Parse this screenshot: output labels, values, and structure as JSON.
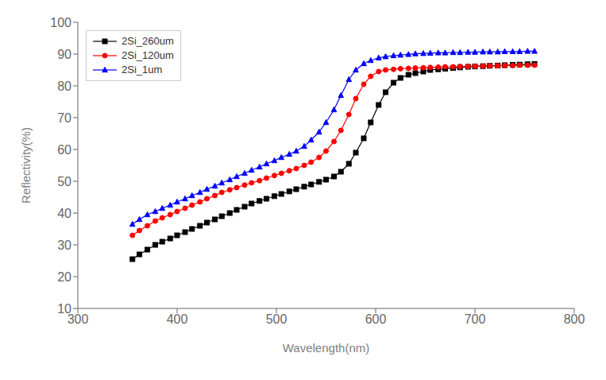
{
  "chart_data": {
    "type": "line",
    "xlabel": "Wavelength(nm)",
    "ylabel": "Reflectivity(%)",
    "xlim": [
      300,
      800
    ],
    "ylim": [
      10,
      100
    ],
    "xticks": [
      300,
      400,
      500,
      600,
      700,
      800
    ],
    "yticks": [
      10,
      20,
      30,
      40,
      50,
      60,
      70,
      80,
      90,
      100
    ],
    "grid": false,
    "legend": "upper left",
    "x": [
      355,
      362,
      370,
      378,
      385,
      393,
      400,
      408,
      415,
      423,
      430,
      438,
      445,
      453,
      460,
      468,
      475,
      483,
      490,
      498,
      505,
      513,
      520,
      528,
      535,
      543,
      550,
      558,
      565,
      573,
      580,
      588,
      595,
      603,
      610,
      618,
      625,
      633,
      640,
      648,
      655,
      663,
      670,
      678,
      685,
      693,
      700,
      708,
      715,
      723,
      730,
      738,
      745,
      753,
      760
    ],
    "series": [
      {
        "name": "2Si_260um",
        "color": "#000000",
        "marker": "square",
        "values": [
          25.5,
          27.0,
          28.5,
          30.0,
          31.0,
          32.0,
          33.0,
          34.0,
          35.0,
          36.0,
          37.0,
          38.0,
          39.0,
          40.0,
          41.0,
          42.0,
          43.0,
          43.8,
          44.5,
          45.3,
          46.0,
          46.8,
          47.5,
          48.3,
          49.0,
          49.8,
          50.5,
          51.5,
          53.0,
          55.5,
          59.0,
          63.5,
          68.5,
          74.0,
          78.0,
          81.0,
          82.5,
          83.5,
          84.0,
          84.5,
          85.0,
          85.2,
          85.4,
          85.6,
          85.8,
          86.0,
          86.1,
          86.2,
          86.3,
          86.4,
          86.5,
          86.6,
          86.7,
          86.8,
          86.9
        ]
      },
      {
        "name": "2Si_120um",
        "color": "#ff0000",
        "marker": "circle",
        "values": [
          33.0,
          34.5,
          36.0,
          37.5,
          38.5,
          39.5,
          40.5,
          41.5,
          42.5,
          43.5,
          44.5,
          45.5,
          46.5,
          47.3,
          48.0,
          48.8,
          49.5,
          50.2,
          51.0,
          51.8,
          52.5,
          53.3,
          54.0,
          55.0,
          56.0,
          57.5,
          59.5,
          62.5,
          66.0,
          71.0,
          76.0,
          80.5,
          83.0,
          84.5,
          85.0,
          85.2,
          85.4,
          85.5,
          85.6,
          85.7,
          85.8,
          85.9,
          86.0,
          86.0,
          86.1,
          86.1,
          86.2,
          86.2,
          86.3,
          86.3,
          86.4,
          86.4,
          86.5,
          86.5,
          86.5
        ]
      },
      {
        "name": "2Si_1um",
        "color": "#0000ff",
        "marker": "triangle",
        "values": [
          36.5,
          38.0,
          39.5,
          40.5,
          41.5,
          42.5,
          43.5,
          44.5,
          45.5,
          46.5,
          47.5,
          48.5,
          49.5,
          50.5,
          51.5,
          52.5,
          53.5,
          54.5,
          55.5,
          56.5,
          57.5,
          58.5,
          59.5,
          61.0,
          63.0,
          65.5,
          68.5,
          72.5,
          77.0,
          82.0,
          85.0,
          87.0,
          88.0,
          88.8,
          89.2,
          89.5,
          89.7,
          89.9,
          90.1,
          90.2,
          90.3,
          90.4,
          90.4,
          90.5,
          90.5,
          90.6,
          90.6,
          90.7,
          90.7,
          90.7,
          90.8,
          90.8,
          90.8,
          90.9,
          90.9
        ]
      }
    ]
  }
}
